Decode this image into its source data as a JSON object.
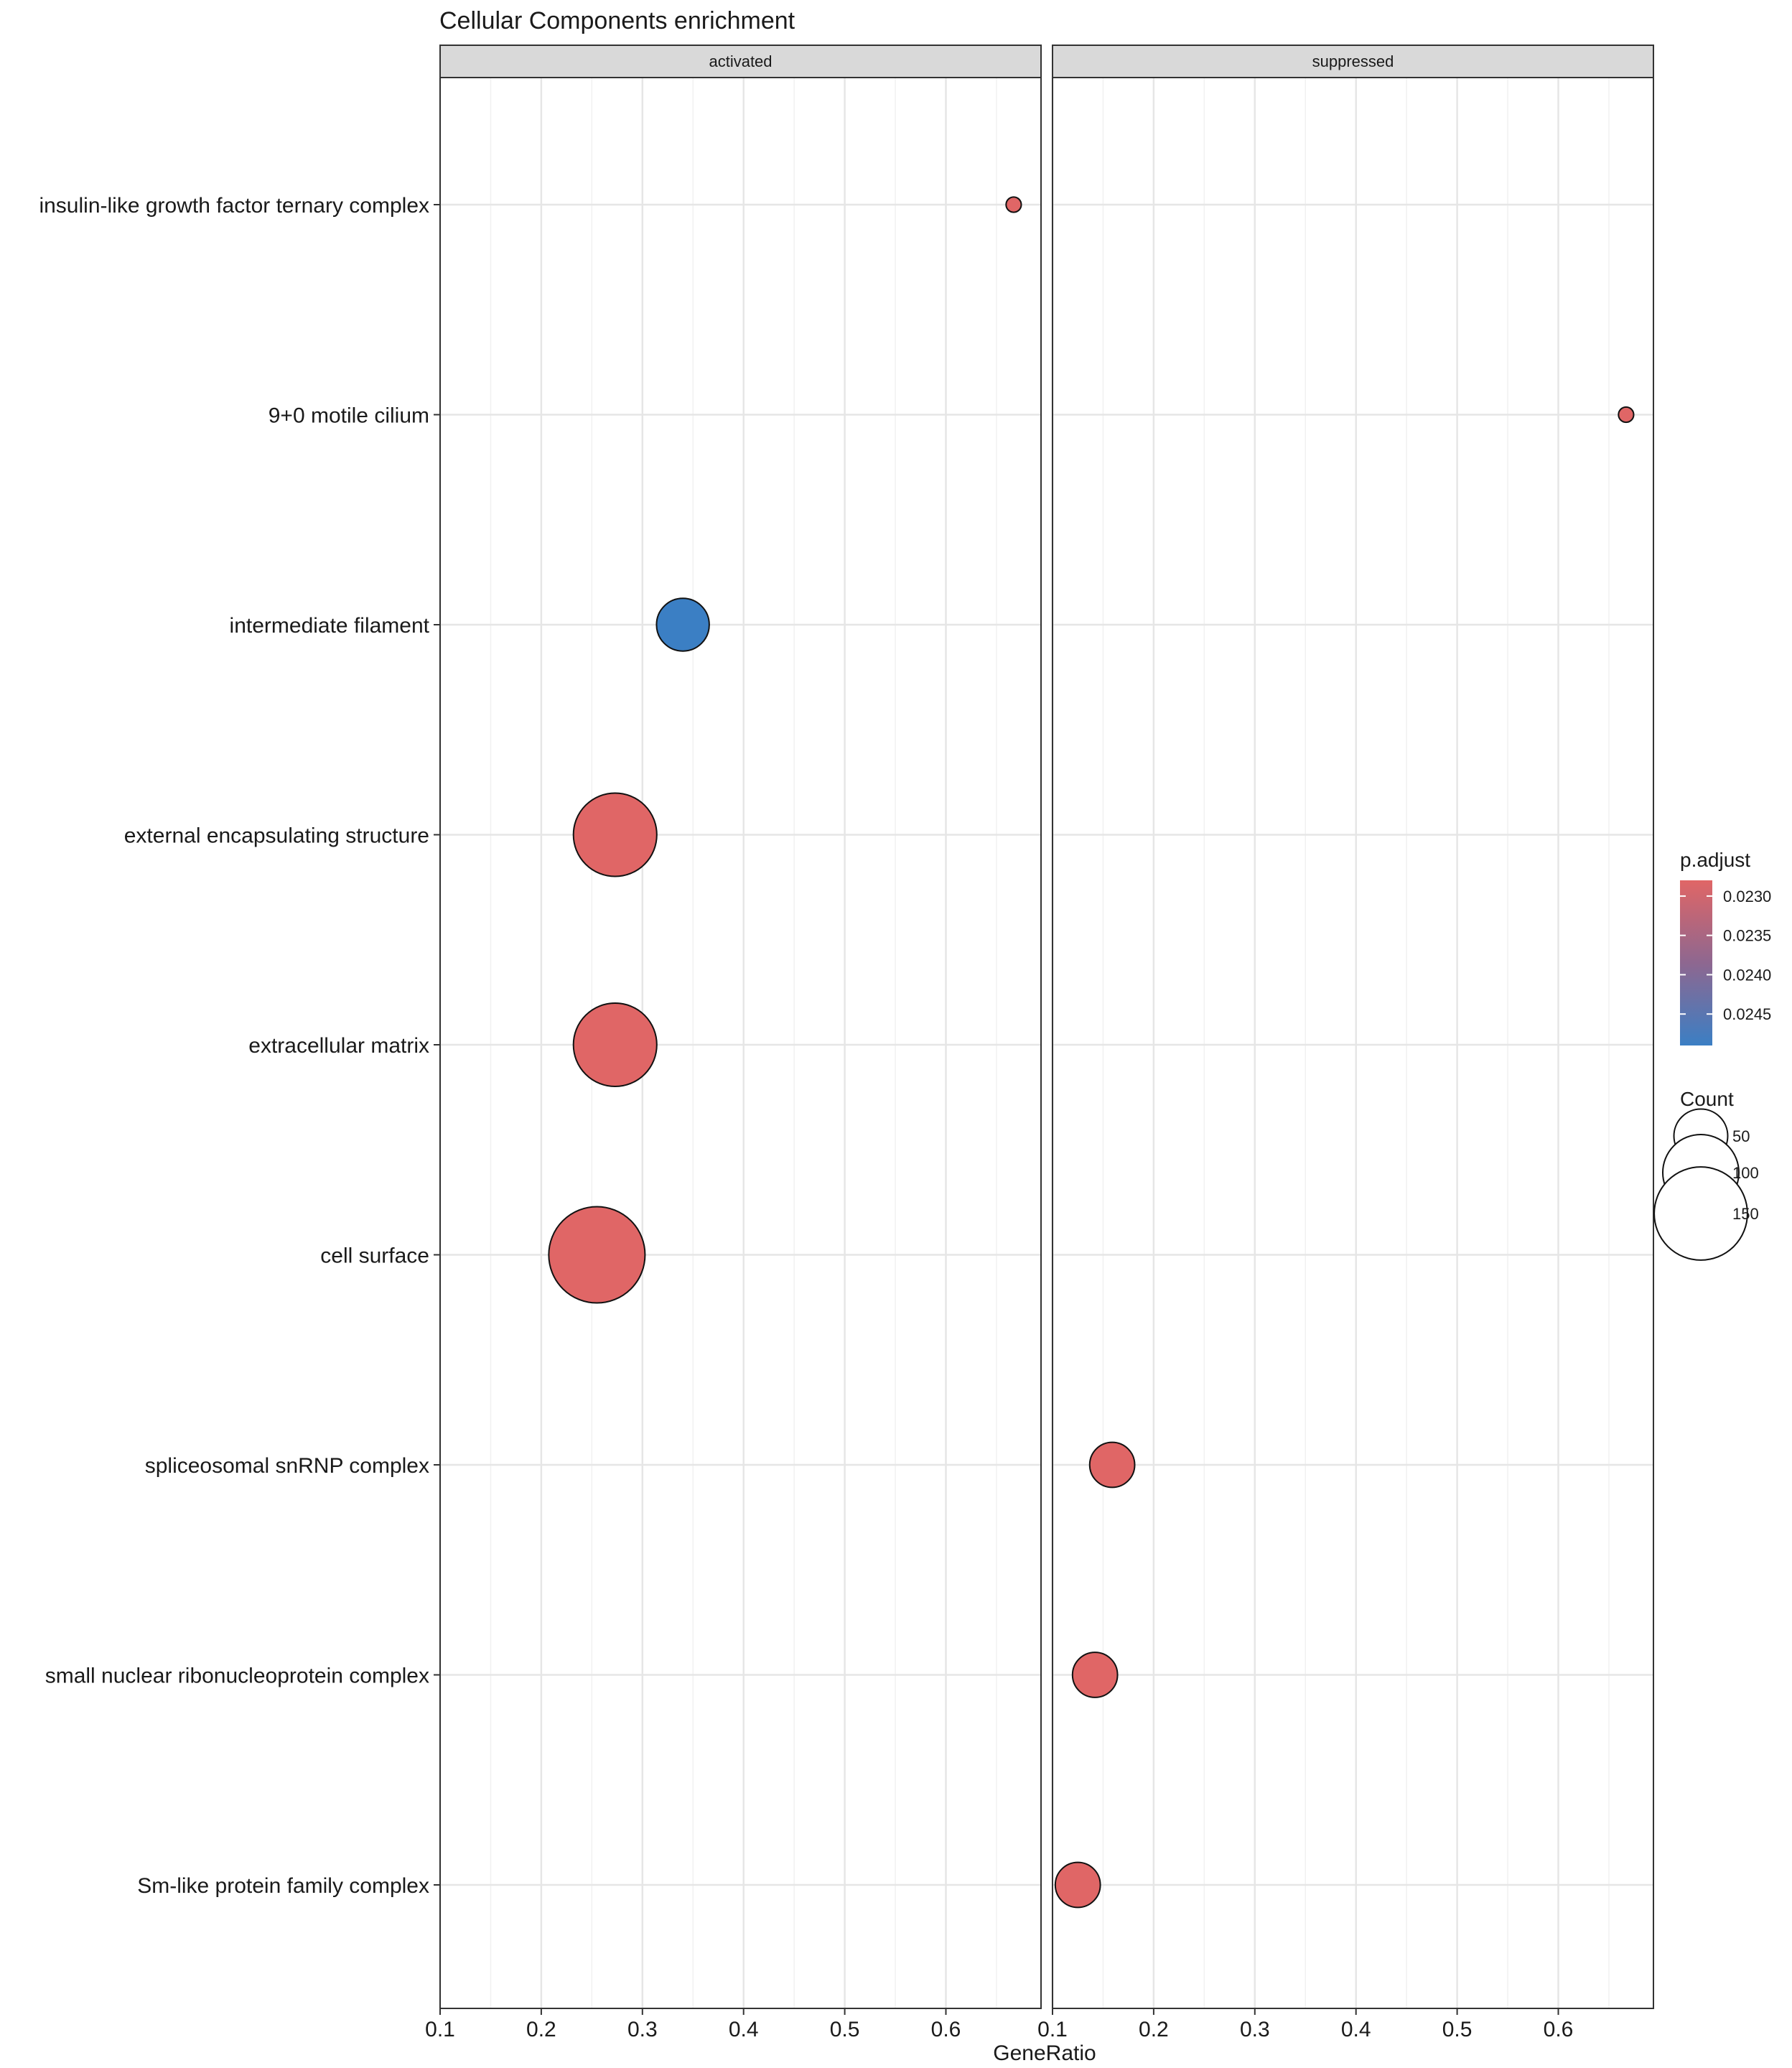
{
  "chart_data": {
    "type": "scatter",
    "title": "Cellular Components enrichment",
    "xlabel": "GeneRatio",
    "ylabel": "",
    "xlim": [
      0.1,
      0.7
    ],
    "x_ticks": [
      0.1,
      0.2,
      0.3,
      0.4,
      0.5,
      0.6
    ],
    "x_tick_labels": [
      "0.1",
      "0.2",
      "0.3",
      "0.4",
      "0.5",
      "0.6"
    ],
    "grid": true,
    "facets": [
      {
        "key": "activated",
        "label": "activated"
      },
      {
        "key": "suppressed",
        "label": "suppressed"
      }
    ],
    "categories": [
      "insulin-like growth factor ternary complex",
      "9+0 motile cilium",
      "intermediate filament",
      "external encapsulating structure",
      "extracellular matrix",
      "cell surface",
      "spliceosomal snRNP complex",
      "small nuclear ribonucleoprotein complex",
      "Sm-like protein family complex"
    ],
    "points": [
      {
        "facet": "activated",
        "category": "insulin-like growth factor ternary complex",
        "x": 0.667,
        "count": 4,
        "p_adjust": 0.0228
      },
      {
        "facet": "activated",
        "category": "intermediate filament",
        "x": 0.34,
        "count": 48,
        "p_adjust": 0.0249
      },
      {
        "facet": "activated",
        "category": "external encapsulating structure",
        "x": 0.273,
        "count": 120,
        "p_adjust": 0.0228
      },
      {
        "facet": "activated",
        "category": "extracellular matrix",
        "x": 0.273,
        "count": 120,
        "p_adjust": 0.0228
      },
      {
        "facet": "activated",
        "category": "cell surface",
        "x": 0.255,
        "count": 160,
        "p_adjust": 0.0228
      },
      {
        "facet": "suppressed",
        "category": "9+0 motile cilium",
        "x": 0.667,
        "count": 4,
        "p_adjust": 0.0228
      },
      {
        "facet": "suppressed",
        "category": "spliceosomal snRNP complex",
        "x": 0.159,
        "count": 35,
        "p_adjust": 0.0228
      },
      {
        "facet": "suppressed",
        "category": "small nuclear ribonucleoprotein complex",
        "x": 0.142,
        "count": 35,
        "p_adjust": 0.0228
      },
      {
        "facet": "suppressed",
        "category": "Sm-like protein family complex",
        "x": 0.125,
        "count": 35,
        "p_adjust": 0.0228
      }
    ],
    "legend_color": {
      "title": "p.adjust",
      "range": [
        0.0228,
        0.0249
      ],
      "ticks": [
        0.023,
        0.0235,
        0.024,
        0.0245
      ],
      "tick_labels": [
        "0.0230",
        "0.0235",
        "0.0240",
        "0.0245"
      ],
      "low_color": "#E06666",
      "high_color": "#3B7FC4"
    },
    "legend_size": {
      "title": "Count",
      "values": [
        50,
        100,
        150
      ],
      "labels": [
        "50",
        "100",
        "150"
      ]
    },
    "legend_position": "right"
  }
}
